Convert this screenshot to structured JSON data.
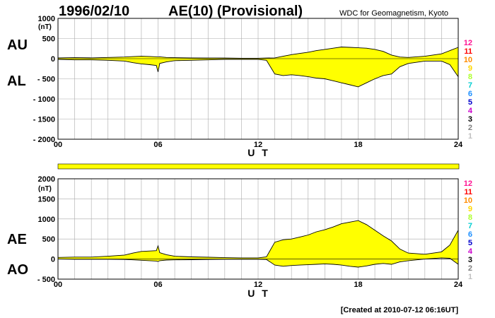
{
  "header": {
    "date": "1996/02/10",
    "index_title": "AE(10) (Provisional)",
    "source": "WDC for Geomagnetism, Kyoto"
  },
  "footer": {
    "created": "[Created at 2010-07-12 06:16UT]"
  },
  "colors": {
    "fill": "#ffff00",
    "line": "#000000",
    "grid": "#aaaaaa",
    "frame": "#000000"
  },
  "legend": [
    {
      "label": "12",
      "color": "#ff1493"
    },
    {
      "label": "11",
      "color": "#ff0000"
    },
    {
      "label": "10",
      "color": "#ff8c00"
    },
    {
      "label": "9",
      "color": "#ffd700"
    },
    {
      "label": "8",
      "color": "#adff2f"
    },
    {
      "label": "7",
      "color": "#00ced1"
    },
    {
      "label": "6",
      "color": "#1e90ff"
    },
    {
      "label": "5",
      "color": "#0000cd"
    },
    {
      "label": "4",
      "color": "#cc00cc"
    },
    {
      "label": "3",
      "color": "#000000"
    },
    {
      "label": "2",
      "color": "#808080"
    },
    {
      "label": "1",
      "color": "#c0c0c0"
    }
  ],
  "chart_data": [
    {
      "type": "area",
      "panel": "AU/AL",
      "labels": [
        "AU",
        "AL"
      ],
      "unit": "(nT)",
      "xlabel": "U T",
      "xlim": [
        0,
        24
      ],
      "ylim": [
        -2000,
        1000
      ],
      "x_ticks": [
        "00",
        "06",
        "12",
        "18",
        "24"
      ],
      "y_ticks": [
        "1000",
        "500",
        "0",
        "- 500",
        "- 1000",
        "- 1500",
        "- 2000"
      ],
      "grid": true,
      "x": [
        0,
        1,
        2,
        3,
        4,
        4.5,
        5,
        5.5,
        5.9,
        6,
        6.1,
        6.5,
        7,
        8,
        9,
        10,
        11,
        12,
        12.5,
        13,
        13.5,
        14,
        14.5,
        15,
        15.5,
        16,
        16.5,
        17,
        17.5,
        18,
        18.5,
        19,
        19.5,
        20,
        20.5,
        21,
        22,
        23,
        23.5,
        24
      ],
      "upper": [
        20,
        25,
        20,
        30,
        40,
        50,
        60,
        55,
        45,
        40,
        45,
        30,
        25,
        20,
        15,
        15,
        10,
        10,
        15,
        20,
        60,
        100,
        130,
        160,
        200,
        230,
        260,
        290,
        280,
        270,
        260,
        230,
        180,
        90,
        40,
        30,
        60,
        120,
        200,
        280
      ],
      "lower": [
        -20,
        -30,
        -30,
        -40,
        -60,
        -100,
        -130,
        -150,
        -170,
        -330,
        -120,
        -80,
        -50,
        -40,
        -30,
        -20,
        -20,
        -20,
        -40,
        -380,
        -420,
        -400,
        -420,
        -450,
        -480,
        -500,
        -550,
        -600,
        -650,
        -700,
        -600,
        -500,
        -420,
        -380,
        -200,
        -120,
        -60,
        -60,
        -150,
        -450
      ]
    },
    {
      "type": "area",
      "panel": "AE/AO",
      "labels": [
        "AE",
        "AO"
      ],
      "unit": "(nT)",
      "xlabel": "U T",
      "xlim": [
        0,
        24
      ],
      "ylim": [
        -500,
        2000
      ],
      "x_ticks": [
        "00",
        "06",
        "12",
        "18",
        "24"
      ],
      "y_ticks": [
        "2000",
        "1500",
        "1000",
        "500",
        "0",
        "- 500"
      ],
      "grid": true,
      "x": [
        0,
        1,
        2,
        3,
        4,
        4.5,
        5,
        5.5,
        5.9,
        6,
        6.1,
        6.5,
        7,
        8,
        9,
        10,
        11,
        12,
        12.5,
        13,
        13.5,
        14,
        14.5,
        15,
        15.5,
        16,
        16.5,
        17,
        17.5,
        18,
        18.5,
        19,
        19.5,
        20,
        20.5,
        21,
        22,
        23,
        23.5,
        24
      ],
      "upper": [
        40,
        50,
        50,
        70,
        100,
        150,
        190,
        200,
        210,
        330,
        160,
        110,
        70,
        55,
        45,
        35,
        30,
        30,
        55,
        420,
        480,
        500,
        550,
        600,
        680,
        730,
        800,
        880,
        920,
        960,
        860,
        720,
        580,
        450,
        250,
        150,
        120,
        180,
        350,
        720
      ],
      "lower": [
        0,
        -5,
        -5,
        -5,
        -10,
        -20,
        -30,
        -40,
        -50,
        -60,
        -40,
        -25,
        -20,
        -15,
        -10,
        -5,
        -5,
        -5,
        -10,
        -150,
        -180,
        -160,
        -150,
        -140,
        -130,
        -120,
        -130,
        -150,
        -180,
        -200,
        -170,
        -130,
        -110,
        -130,
        -70,
        -40,
        0,
        30,
        20,
        -130
      ]
    }
  ]
}
